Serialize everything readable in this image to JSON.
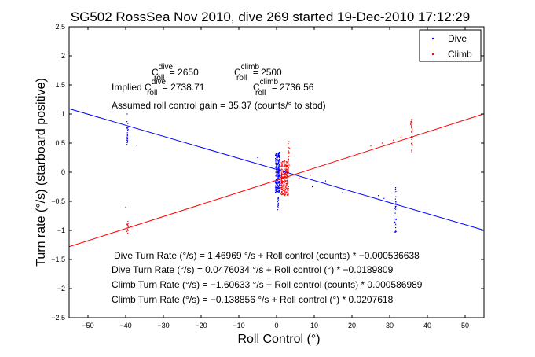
{
  "chart_data": {
    "type": "scatter",
    "title": "SG502 RossSea Nov 2010, dive 269 started 19-Dec-2010 17:12:29",
    "xlabel": "Roll Control (°)",
    "ylabel": "Turn rate (°/s) (starboard positive)",
    "xlim": [
      -55,
      55
    ],
    "ylim": [
      -2.5,
      2.5
    ],
    "x_ticks": [
      -50,
      -40,
      -30,
      -20,
      -10,
      0,
      10,
      20,
      30,
      40,
      50
    ],
    "y_ticks": [
      -2.5,
      -2,
      -1.5,
      -1,
      -0.5,
      0,
      0.5,
      1,
      1.5,
      2,
      2.5
    ],
    "x_tick_labels": [
      "−50",
      "−40",
      "−30",
      "−20",
      "−10",
      "0",
      "10",
      "20",
      "30",
      "40",
      "50"
    ],
    "y_tick_labels": [
      "−2.5",
      "−2",
      "−1.5",
      "−1",
      "−0.5",
      "0",
      "0.5",
      "1",
      "1.5",
      "2",
      "2.5"
    ],
    "grid": false,
    "legend_position": "top-right",
    "series": [
      {
        "name": "Dive",
        "color": "#0000ff",
        "clusters": [
          {
            "x": 0.3,
            "x_spread": 1.2,
            "y_min": -0.35,
            "y_max": 0.35,
            "n": 230
          },
          {
            "x": 0.4,
            "x_spread": 0.3,
            "y_min": -0.65,
            "y_max": -0.4,
            "n": 14
          },
          {
            "x": -39.5,
            "x_spread": 0.4,
            "y_min": 0.45,
            "y_max": 0.95,
            "n": 22
          },
          {
            "x": 31.5,
            "x_spread": 0.4,
            "y_min": -1.05,
            "y_max": -0.25,
            "n": 30
          }
        ],
        "points": [
          [
            -37,
            0.45
          ],
          [
            -5,
            0.25
          ],
          [
            9.5,
            -0.25
          ],
          [
            13,
            -0.15
          ],
          [
            17.5,
            -0.35
          ],
          [
            27,
            -0.4
          ],
          [
            28.5,
            -0.45
          ],
          [
            -39.6,
            1.0
          ]
        ]
      },
      {
        "name": "Climb",
        "color": "#ff0000",
        "clusters": [
          {
            "x": 2.2,
            "x_spread": 2.0,
            "y_min": -0.4,
            "y_max": 0.2,
            "n": 260
          },
          {
            "x": 3.2,
            "x_spread": 0.4,
            "y_min": 0.05,
            "y_max": 0.6,
            "n": 18
          },
          {
            "x": 35.8,
            "x_spread": 0.5,
            "y_min": 0.35,
            "y_max": 0.92,
            "n": 32
          },
          {
            "x": -39.5,
            "x_spread": 0.4,
            "y_min": -1.05,
            "y_max": -0.8,
            "n": 14
          }
        ],
        "points": [
          [
            -40,
            -0.6
          ],
          [
            25,
            0.45
          ],
          [
            28,
            0.5
          ],
          [
            31,
            0.55
          ],
          [
            33,
            0.6
          ],
          [
            9,
            -0.05
          ],
          [
            6,
            -0.1
          ]
        ]
      }
    ],
    "fit_lines": [
      {
        "series": "Dive",
        "color": "#0000ff",
        "intercept": 0.0476034,
        "slope": -0.0189809
      },
      {
        "series": "Climb",
        "color": "#ff0000",
        "intercept": -0.138856,
        "slope": 0.0207618
      }
    ],
    "annotations": {
      "c_dive": {
        "base": "C",
        "sup": "dive",
        "sub": "roll",
        "value": " = 2650"
      },
      "c_climb": {
        "base": "C",
        "sup": "climb",
        "sub": "roll",
        "value": " = 2500"
      },
      "implied_prefix": "Implied ",
      "implied_dive": {
        "base": "C",
        "sup": "dive",
        "sub": "roll",
        "value": " = 2738.71"
      },
      "implied_climb": {
        "base": "C",
        "sup": "climb",
        "sub": "roll",
        "value": " = 2736.56"
      },
      "gain": "Assumed roll control gain = 35.37 (counts/° to stbd)",
      "eq1": "Dive Turn Rate (°/s) = 1.46969 °/s + Roll control (counts) * −0.000536638",
      "eq2": "Dive Turn Rate (°/s) = 0.0476034 °/s + Roll control (°) * −0.0189809",
      "eq3": "Climb Turn Rate (°/s) = −1.60633 °/s + Roll control (counts) * 0.000586989",
      "eq4": "Climb Turn Rate (°/s) = −0.138856 °/s + Roll control (°) * 0.0207618"
    }
  }
}
